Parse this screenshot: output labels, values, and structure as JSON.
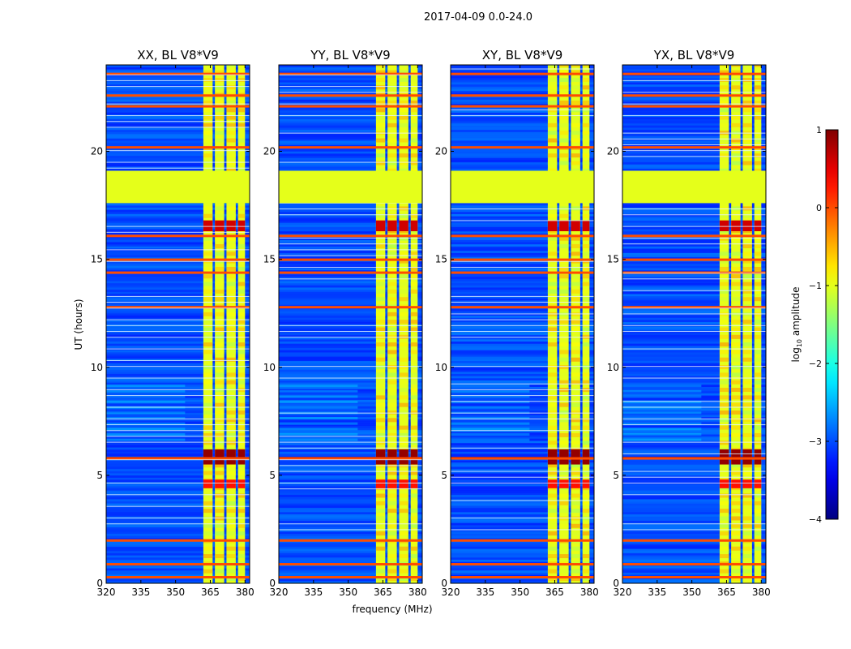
{
  "figure": {
    "suptitle": "2017-04-09 0.0-24.0"
  },
  "chart_data": {
    "type": "heatmap",
    "title": "2017-04-09 0.0-24.0",
    "xlabel": "frequency (MHz)",
    "ylabel": "UT (hours)",
    "xlim": [
      320,
      382
    ],
    "ylim": [
      0,
      24
    ],
    "x_ticks": [
      "320",
      "335",
      "350",
      "365",
      "380"
    ],
    "x_tick_values": [
      320,
      335,
      350,
      365,
      380
    ],
    "y_ticks": [
      "0",
      "5",
      "10",
      "15",
      "20"
    ],
    "y_tick_values": [
      0,
      5,
      10,
      15,
      20
    ],
    "panels": [
      {
        "title": "XX, BL V8*V9",
        "pol": "XX"
      },
      {
        "title": "YY, BL V8*V9",
        "pol": "YY"
      },
      {
        "title": "XY, BL V8*V9",
        "pol": "XY"
      },
      {
        "title": "YX, BL V8*V9",
        "pol": "YX"
      }
    ],
    "colorbar": {
      "label": "log10 amplitude",
      "label_main": "log",
      "label_sub": "10",
      "label_rest": " amplitude",
      "range": [
        -4,
        1
      ],
      "ticks": [
        "1",
        "0",
        "−1",
        "−2",
        "−3",
        "−4"
      ],
      "tick_values": [
        1,
        0,
        -1,
        -2,
        -3,
        -4
      ],
      "colormap": "jet"
    },
    "background_level": -3.0,
    "flagged_band": {
      "ut_start": 17.6,
      "ut_end": 19.1,
      "level": -1.0
    },
    "rfi_channels_mhz": [
      [
        362,
        366
      ],
      [
        367,
        371
      ],
      [
        372,
        376
      ],
      [
        377,
        380
      ]
    ],
    "rfi_channel_level": -1.0,
    "strong_rfi_events": [
      {
        "ut_start": 16.3,
        "ut_end": 16.8,
        "level": 0.6
      },
      {
        "ut_start": 5.5,
        "ut_end": 6.2,
        "level": 0.9
      },
      {
        "ut_start": 4.4,
        "ut_end": 4.8,
        "level": 0.3
      }
    ],
    "flagged_rows_ut": [
      0.3,
      0.9,
      2.0,
      5.8,
      12.8,
      14.4,
      15.0,
      16.1,
      20.2,
      22.1,
      22.6,
      23.6
    ],
    "flagged_row_level": 0.0,
    "colors": {
      "jet_dark_blue": "#00007f",
      "jet_blue": "#0000ff",
      "jet_cyan": "#00ffff",
      "jet_green": "#7fff7f",
      "jet_yellow": "#ffff00",
      "jet_orange": "#ff7f00",
      "jet_red": "#ff0000",
      "jet_dark_red": "#7f0000"
    }
  }
}
